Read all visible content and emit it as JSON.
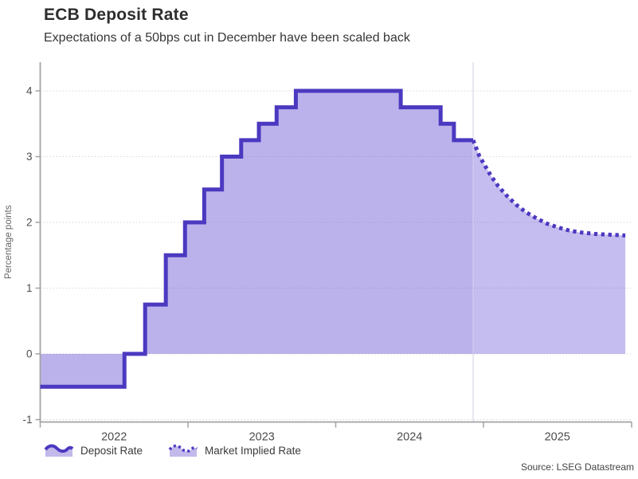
{
  "header": {
    "title": "ECB Deposit Rate",
    "subtitle": "Expectations of a 50bps cut in December have been scaled back"
  },
  "source": "Source: LSEG Datastream",
  "legend": [
    {
      "label": "Deposit Rate",
      "style": "solid"
    },
    {
      "label": "Market Implied Rate",
      "style": "dotted"
    }
  ],
  "chart_data": {
    "type": "area",
    "title": "ECB Deposit Rate",
    "subtitle": "Expectations of a 50bps cut in December have been scaled back",
    "xlabel": "",
    "ylabel": "Percentage points",
    "x_range": [
      2022,
      2025.96
    ],
    "ylim": [
      -1.03,
      4.43
    ],
    "y_ticks": [
      4,
      3,
      2,
      1,
      0,
      -1
    ],
    "x_year_ticks": [
      {
        "value": 2022,
        "label": "2022"
      },
      {
        "value": 2023,
        "label": "2023"
      },
      {
        "value": 2024,
        "label": "2024"
      },
      {
        "value": 2025,
        "label": "2025"
      }
    ],
    "grid": "horizontal-dotted",
    "legend_position": "bottom-left",
    "forecast_split": 2024.93,
    "series": [
      {
        "name": "Deposit Rate",
        "type": "step",
        "end": 2024.93,
        "values": [
          [
            2022.0,
            -0.5
          ],
          [
            2022.57,
            0.0
          ],
          [
            2022.71,
            0.75
          ],
          [
            2022.85,
            1.5
          ],
          [
            2022.98,
            2.0
          ],
          [
            2023.11,
            2.5
          ],
          [
            2023.23,
            3.0
          ],
          [
            2023.36,
            3.25
          ],
          [
            2023.48,
            3.5
          ],
          [
            2023.6,
            3.75
          ],
          [
            2023.73,
            4.0
          ],
          [
            2024.44,
            3.75
          ],
          [
            2024.71,
            3.5
          ],
          [
            2024.8,
            3.25
          ]
        ]
      },
      {
        "name": "Market Implied Rate",
        "type": "line",
        "values": [
          [
            2024.93,
            3.25
          ],
          [
            2024.97,
            3.02
          ],
          [
            2025.0,
            2.9
          ],
          [
            2025.05,
            2.71
          ],
          [
            2025.1,
            2.55
          ],
          [
            2025.16,
            2.4
          ],
          [
            2025.22,
            2.27
          ],
          [
            2025.29,
            2.15
          ],
          [
            2025.36,
            2.06
          ],
          [
            2025.43,
            1.98
          ],
          [
            2025.51,
            1.92
          ],
          [
            2025.59,
            1.87
          ],
          [
            2025.68,
            1.84
          ],
          [
            2025.78,
            1.82
          ],
          [
            2025.88,
            1.81
          ],
          [
            2025.96,
            1.8
          ]
        ]
      }
    ],
    "colors": {
      "line": "#4b39c0",
      "fill_base": "#6f5bd6",
      "grid": "#d8d8d8",
      "axis": "#a3a3a3",
      "tick_text": "#4d4d4d",
      "axis_label_text": "#666666"
    }
  }
}
